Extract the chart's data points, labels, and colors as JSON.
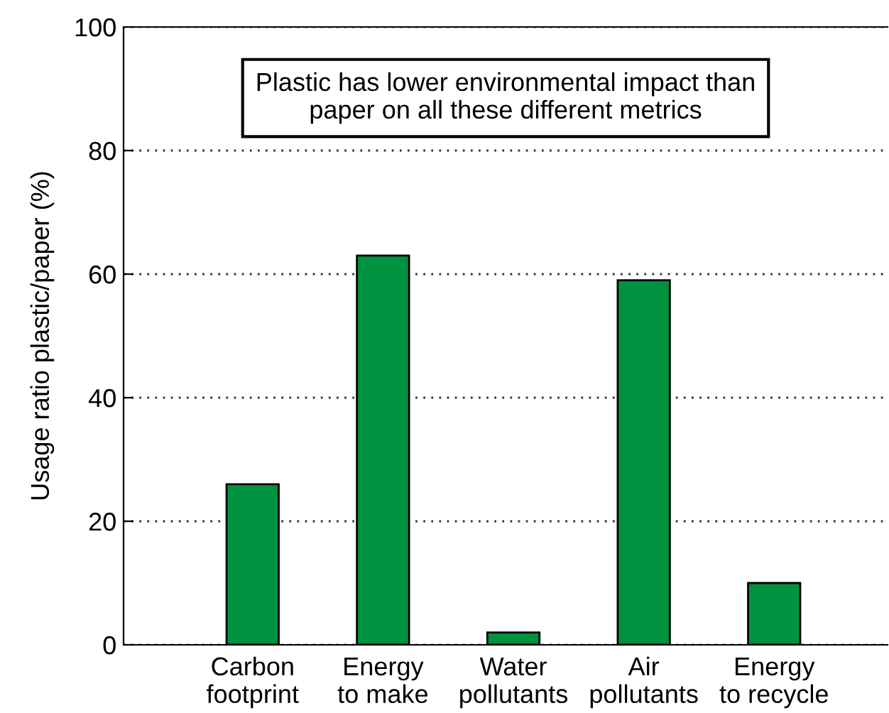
{
  "chart_data": {
    "type": "bar",
    "ylabel": "Usage ratio plastic/paper (%)",
    "categories": [
      "Carbon\nfootprint",
      "Energy\nto make",
      "Water\npollutants",
      "Air\npollutants",
      "Energy\nto recycle"
    ],
    "values": [
      26,
      63,
      2,
      59,
      10
    ],
    "color": "#00923f",
    "ylim": [
      0,
      100
    ],
    "yticks": [
      0,
      20,
      40,
      60,
      80,
      100
    ],
    "grid": "y",
    "annotations": [
      "Plastic has lower environmental impact than\npaper on all these different metrics"
    ]
  }
}
